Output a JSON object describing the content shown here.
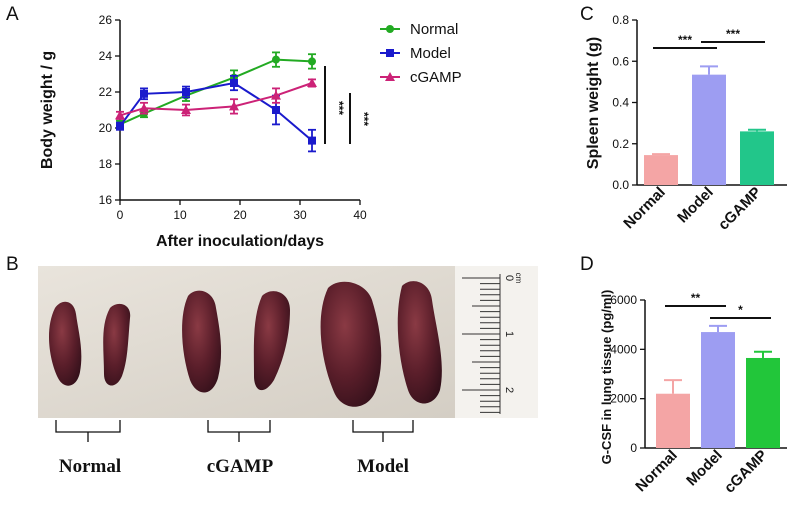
{
  "panels": {
    "a": "A",
    "b": "B",
    "c": "C",
    "d": "D"
  },
  "chart_data": [
    {
      "id": "A",
      "type": "line",
      "xlabel": "After inoculation/days",
      "ylabel": "Body weight / g",
      "xlim": [
        0,
        40
      ],
      "ylim": [
        16,
        26
      ],
      "xticks": [
        0,
        10,
        20,
        30,
        40
      ],
      "yticks": [
        16,
        18,
        20,
        22,
        24,
        26
      ],
      "xtick_labels": [
        "0",
        "10",
        "20",
        "30",
        "40"
      ],
      "ytick_labels": [
        "16",
        "18",
        "20",
        "22",
        "24",
        "26"
      ],
      "legend_position": "top-right",
      "series": [
        {
          "name": "Normal",
          "color": "#22aa22",
          "marker": "circle",
          "x": [
            0,
            4,
            11,
            19,
            26,
            32
          ],
          "y": [
            20.2,
            20.8,
            21.8,
            22.8,
            23.8,
            23.7
          ],
          "err": [
            0.2,
            0.2,
            0.3,
            0.4,
            0.4,
            0.4
          ]
        },
        {
          "name": "Model",
          "color": "#1a1acc",
          "marker": "square",
          "x": [
            0,
            4,
            11,
            19,
            26,
            32
          ],
          "y": [
            20.1,
            21.9,
            22.0,
            22.5,
            21.0,
            19.3
          ],
          "err": [
            0.2,
            0.3,
            0.3,
            0.4,
            0.8,
            0.6
          ]
        },
        {
          "name": "cGAMP",
          "color": "#cc2277",
          "marker": "triangle",
          "x": [
            0,
            4,
            11,
            19,
            26,
            32
          ],
          "y": [
            20.7,
            21.1,
            21.0,
            21.2,
            21.8,
            22.5
          ],
          "err": [
            0.2,
            0.3,
            0.3,
            0.4,
            0.4,
            0.2
          ]
        }
      ],
      "significance": [
        "***",
        "***"
      ]
    },
    {
      "id": "C",
      "type": "bar",
      "ylabel": "Spleen weight (g)",
      "categories": [
        "Normal",
        "Model",
        "cGAMP"
      ],
      "values": [
        0.145,
        0.535,
        0.26
      ],
      "errors": [
        0.005,
        0.04,
        0.008
      ],
      "colors": [
        "#f4a5a5",
        "#9d9df2",
        "#22c68a"
      ],
      "ylim": [
        0,
        0.8
      ],
      "yticks": [
        0,
        0.2,
        0.4,
        0.6,
        0.8
      ],
      "ytick_labels": [
        "0.0",
        "0.2",
        "0.4",
        "0.6",
        "0.8"
      ],
      "significance": [
        {
          "from": 0,
          "to": 1,
          "label": "***"
        },
        {
          "from": 1,
          "to": 2,
          "label": "***"
        }
      ]
    },
    {
      "id": "D",
      "type": "bar",
      "ylabel": "G-CSF in lung tissue (pg/ml)",
      "categories": [
        "Normal",
        "Model",
        "cGAMP"
      ],
      "values": [
        2200,
        4700,
        3650
      ],
      "errors": [
        550,
        250,
        250
      ],
      "colors": [
        "#f4a5a5",
        "#9d9df2",
        "#22c63a"
      ],
      "ylim": [
        0,
        6000
      ],
      "yticks": [
        0,
        2000,
        4000,
        6000
      ],
      "ytick_labels": [
        "0",
        "2000",
        "4000",
        "6000"
      ],
      "significance": [
        {
          "from": 0,
          "to": 1,
          "label": "**"
        },
        {
          "from": 1,
          "to": 2,
          "label": "*"
        }
      ]
    }
  ],
  "photo": {
    "groups": [
      "Normal",
      "cGAMP",
      "Model"
    ],
    "ruler_labels": [
      "0",
      "1",
      "2"
    ],
    "ruler_unit": "cm"
  }
}
